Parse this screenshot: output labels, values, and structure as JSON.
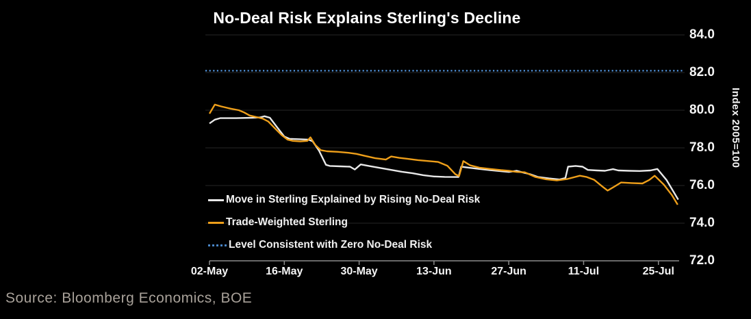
{
  "chart_data": {
    "type": "line",
    "title": "No-Deal Risk Explains Sterling's Decline",
    "source": "Source: Bloomberg Economics, BOE",
    "grid": true,
    "legend_position": "inside-bottom-left",
    "y_axis": {
      "label": "Index 2005=100",
      "tick_values": [
        84,
        82,
        80,
        78,
        76,
        74,
        72
      ],
      "tick_labels": [
        "84.0",
        "82.0",
        "80.0",
        "78.0",
        "76.0",
        "74.0",
        "72.0"
      ],
      "lim": [
        72,
        84.4
      ],
      "side": "right"
    },
    "x_axis": {
      "unit": "days since first tick (dates, 14-day spacing)",
      "tick_days": [
        0,
        14,
        28,
        42,
        56,
        70,
        84
      ],
      "tick_labels": [
        "02-May",
        "16-May",
        "30-May",
        "13-Jun",
        "27-Jun",
        "11-Jul",
        "25-Jul"
      ],
      "domain_days": [
        0,
        88
      ]
    },
    "reference_line": {
      "name": "Level Consistent with Zero No-Deal Risk",
      "value": 82.1,
      "color": "#4A86C8",
      "style": "dotted"
    },
    "series": [
      {
        "name": "Move in Sterling Explained by Rising No-Deal Risk",
        "color": "#E9E9E9",
        "style": "solid",
        "points": [
          [
            0,
            79.3
          ],
          [
            1,
            79.5
          ],
          [
            2,
            79.58
          ],
          [
            5,
            79.58
          ],
          [
            8,
            79.6
          ],
          [
            9.5,
            79.62
          ],
          [
            10.3,
            79.68
          ],
          [
            11.3,
            79.6
          ],
          [
            12.5,
            79.15
          ],
          [
            14,
            78.6
          ],
          [
            15,
            78.48
          ],
          [
            17,
            78.46
          ],
          [
            18.5,
            78.44
          ],
          [
            19.3,
            78.35
          ],
          [
            20.5,
            77.85
          ],
          [
            21.8,
            77.1
          ],
          [
            22.5,
            77.04
          ],
          [
            24.5,
            77.02
          ],
          [
            26.3,
            77.0
          ],
          [
            27.2,
            76.85
          ],
          [
            28.3,
            77.12
          ],
          [
            30,
            77.03
          ],
          [
            32,
            76.93
          ],
          [
            34,
            76.83
          ],
          [
            36,
            76.73
          ],
          [
            38,
            76.65
          ],
          [
            40,
            76.55
          ],
          [
            42,
            76.48
          ],
          [
            44,
            76.46
          ],
          [
            46.6,
            76.45
          ],
          [
            47.1,
            77.0
          ],
          [
            48.5,
            76.95
          ],
          [
            50.5,
            76.88
          ],
          [
            52.5,
            76.82
          ],
          [
            54.5,
            76.76
          ],
          [
            56,
            76.72
          ],
          [
            57.5,
            76.78
          ],
          [
            58.5,
            76.7
          ],
          [
            60,
            76.6
          ],
          [
            61.5,
            76.45
          ],
          [
            63.5,
            76.38
          ],
          [
            65.5,
            76.32
          ],
          [
            66.6,
            76.4
          ],
          [
            67.1,
            77.0
          ],
          [
            68.5,
            77.04
          ],
          [
            69.8,
            77.0
          ],
          [
            70.8,
            76.83
          ],
          [
            72.5,
            76.8
          ],
          [
            74,
            76.78
          ],
          [
            75.5,
            76.87
          ],
          [
            76.5,
            76.8
          ],
          [
            78.5,
            76.78
          ],
          [
            80.5,
            76.77
          ],
          [
            82.5,
            76.8
          ],
          [
            83.8,
            76.88
          ],
          [
            85.5,
            76.3
          ],
          [
            87.7,
            75.25
          ]
        ]
      },
      {
        "name": "Trade-Weighted Sterling",
        "color": "#EE9F1A",
        "style": "solid",
        "points": [
          [
            0,
            79.82
          ],
          [
            1,
            80.3
          ],
          [
            2.2,
            80.2
          ],
          [
            4,
            80.08
          ],
          [
            5.5,
            80.0
          ],
          [
            6.5,
            79.88
          ],
          [
            7.5,
            79.72
          ],
          [
            9,
            79.62
          ],
          [
            10,
            79.55
          ],
          [
            11,
            79.4
          ],
          [
            12.2,
            79.05
          ],
          [
            13.5,
            78.68
          ],
          [
            14.6,
            78.44
          ],
          [
            15.6,
            78.37
          ],
          [
            17,
            78.34
          ],
          [
            18.3,
            78.37
          ],
          [
            18.9,
            78.56
          ],
          [
            19.8,
            78.15
          ],
          [
            20.8,
            77.88
          ],
          [
            22,
            77.82
          ],
          [
            24,
            77.79
          ],
          [
            26,
            77.74
          ],
          [
            27.5,
            77.68
          ],
          [
            29,
            77.58
          ],
          [
            31,
            77.45
          ],
          [
            33,
            77.38
          ],
          [
            34,
            77.54
          ],
          [
            35.5,
            77.47
          ],
          [
            37,
            77.42
          ],
          [
            39,
            77.35
          ],
          [
            41,
            77.3
          ],
          [
            42.8,
            77.25
          ],
          [
            44.5,
            77.05
          ],
          [
            46,
            76.6
          ],
          [
            46.7,
            76.5
          ],
          [
            47.5,
            77.3
          ],
          [
            48.8,
            77.07
          ],
          [
            50.5,
            76.95
          ],
          [
            52.5,
            76.88
          ],
          [
            54.5,
            76.82
          ],
          [
            56,
            76.78
          ],
          [
            57.5,
            76.72
          ],
          [
            59,
            76.7
          ],
          [
            61,
            76.45
          ],
          [
            63,
            76.33
          ],
          [
            65,
            76.27
          ],
          [
            67,
            76.35
          ],
          [
            69.3,
            76.52
          ],
          [
            70.5,
            76.46
          ],
          [
            72,
            76.3
          ],
          [
            73.5,
            75.95
          ],
          [
            74.5,
            75.73
          ],
          [
            75.8,
            75.95
          ],
          [
            77,
            76.16
          ],
          [
            79,
            76.13
          ],
          [
            81,
            76.11
          ],
          [
            82.3,
            76.3
          ],
          [
            83.3,
            76.52
          ],
          [
            85,
            76.05
          ],
          [
            86.5,
            75.5
          ],
          [
            87.6,
            74.98
          ]
        ]
      }
    ],
    "colors": {
      "background": "#000000",
      "gridline": "#262626",
      "axis": "#8C8C8C",
      "tick_text": "#F5F5F5",
      "source_text": "#A8A199"
    }
  }
}
